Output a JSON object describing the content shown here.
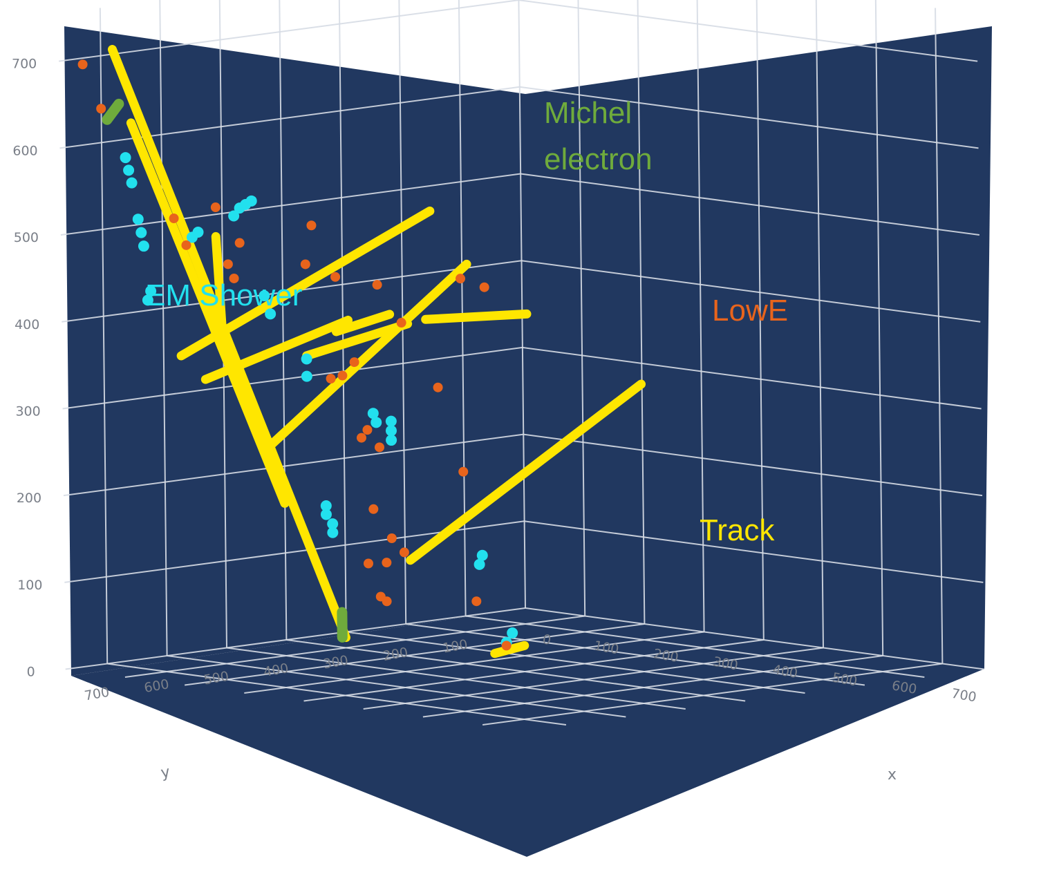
{
  "chart_data": {
    "type": "scatter3d",
    "colors": {
      "background": "#213860",
      "grid": "#d6dbe4",
      "track": "#ffe600",
      "em_shower": "#22e0ee",
      "lowe": "#e8641c",
      "michel": "#6fab3c",
      "tick_text": "#7a7f88"
    },
    "axes": {
      "x": {
        "label": "x",
        "range": [
          0,
          770
        ],
        "ticks": [
          "0",
          "100",
          "200",
          "300",
          "400",
          "500",
          "600",
          "700"
        ]
      },
      "y": {
        "label": "y",
        "range": [
          40,
          770
        ],
        "ticks": [
          "100",
          "200",
          "300",
          "400",
          "500",
          "600",
          "700"
        ]
      },
      "z": {
        "label": "",
        "range": [
          0,
          730
        ],
        "ticks": [
          "0",
          "100",
          "200",
          "300",
          "400",
          "500",
          "600",
          "700"
        ]
      }
    },
    "grid": true,
    "annotations": [
      {
        "text": "Michel",
        "class": "michel"
      },
      {
        "text": "electron",
        "class": "michel"
      },
      {
        "text": "EM Shower",
        "class": "em_shower"
      },
      {
        "text": "LowE",
        "class": "lowe"
      },
      {
        "text": "Track",
        "class": "track"
      }
    ],
    "series": [
      {
        "class": "track",
        "tracks": [
          {
            "from": [
              90,
              390,
              10
            ],
            "to": [
              80,
              760,
              720
            ]
          },
          {
            "from": [
              70,
              470,
              170
            ],
            "to": [
              120,
              770,
              640
            ]
          },
          {
            "from": [
              150,
              720,
              370
            ],
            "to": [
              460,
              610,
              555
            ]
          },
          {
            "from": [
              180,
              600,
              260
            ],
            "to": [
              360,
              450,
              470
            ]
          },
          {
            "from": [
              260,
              450,
              120
            ],
            "to": [
              440,
              240,
              320
            ]
          },
          {
            "from": [
              290,
              450,
              400
            ],
            "to": [
              450,
              440,
              420
            ]
          },
          {
            "from": [
              210,
              520,
              385
            ],
            "to": [
              310,
              530,
              415
            ]
          },
          {
            "from": [
              100,
              630,
              330
            ],
            "to": [
              230,
              520,
              400
            ]
          },
          {
            "from": [
              200,
              560,
              360
            ],
            "to": [
              330,
              520,
              405
            ]
          },
          {
            "from": [
              140,
              650,
              500
            ],
            "to": [
              140,
              640,
              380
            ]
          },
          {
            "from": [
              370,
              420,
              20
            ],
            "to": [
              400,
              400,
              30
            ]
          }
        ]
      },
      {
        "class": "michel",
        "tracks": [
          {
            "from": [
              80,
              770,
              640
            ],
            "to": [
              100,
              770,
              660
            ]
          },
          {
            "from": [
              86,
              392,
              10
            ],
            "to": [
              92,
              398,
              40
            ]
          }
        ]
      },
      {
        "class": "em_shower",
        "points": [
          [
            80,
            560,
            510
          ],
          [
            90,
            560,
            520
          ],
          [
            100,
            560,
            525
          ],
          [
            110,
            560,
            530
          ],
          [
            70,
            620,
            490
          ],
          [
            70,
            610,
            495
          ],
          [
            60,
            720,
            590
          ],
          [
            60,
            715,
            575
          ],
          [
            60,
            710,
            560
          ],
          [
            75,
            715,
            520
          ],
          [
            80,
            715,
            505
          ],
          [
            85,
            716,
            490
          ],
          [
            100,
            720,
            440
          ],
          [
            100,
            725,
            430
          ],
          [
            170,
            600,
            430
          ],
          [
            180,
            600,
            410
          ],
          [
            220,
            580,
            360
          ],
          [
            220,
            580,
            340
          ],
          [
            190,
            410,
            270
          ],
          [
            195,
            415,
            260
          ],
          [
            200,
            420,
            250
          ],
          [
            180,
            430,
            280
          ],
          [
            185,
            430,
            270
          ],
          [
            230,
            560,
            190
          ],
          [
            230,
            560,
            180
          ],
          [
            130,
            450,
            150
          ],
          [
            130,
            450,
            140
          ],
          [
            180,
            250,
            100
          ],
          [
            180,
            255,
            90
          ],
          [
            420,
            450,
            40
          ],
          [
            420,
            440,
            50
          ]
        ]
      },
      {
        "class": "lowe",
        "points": [
          [
            40,
            770,
            700
          ],
          [
            60,
            760,
            650
          ],
          [
            100,
            680,
            520
          ],
          [
            120,
            630,
            530
          ],
          [
            150,
            500,
            500
          ],
          [
            60,
            620,
            480
          ],
          [
            200,
            670,
            500
          ],
          [
            160,
            650,
            470
          ],
          [
            280,
            640,
            480
          ],
          [
            200,
            680,
            460
          ],
          [
            330,
            640,
            470
          ],
          [
            360,
            600,
            460
          ],
          [
            500,
            600,
            480
          ],
          [
            520,
            580,
            470
          ],
          [
            400,
            600,
            420
          ],
          [
            300,
            600,
            350
          ],
          [
            280,
            560,
            360
          ],
          [
            400,
            540,
            340
          ],
          [
            200,
            520,
            330
          ],
          [
            160,
            430,
            250
          ],
          [
            170,
            430,
            260
          ],
          [
            180,
            420,
            240
          ],
          [
            240,
            340,
            210
          ],
          [
            400,
            650,
            210
          ],
          [
            380,
            600,
            170
          ],
          [
            300,
            560,
            130
          ],
          [
            260,
            460,
            130
          ],
          [
            200,
            430,
            110
          ],
          [
            280,
            510,
            80
          ],
          [
            300,
            380,
            70
          ],
          [
            300,
            540,
            90
          ],
          [
            440,
            470,
            40
          ]
        ]
      }
    ]
  }
}
